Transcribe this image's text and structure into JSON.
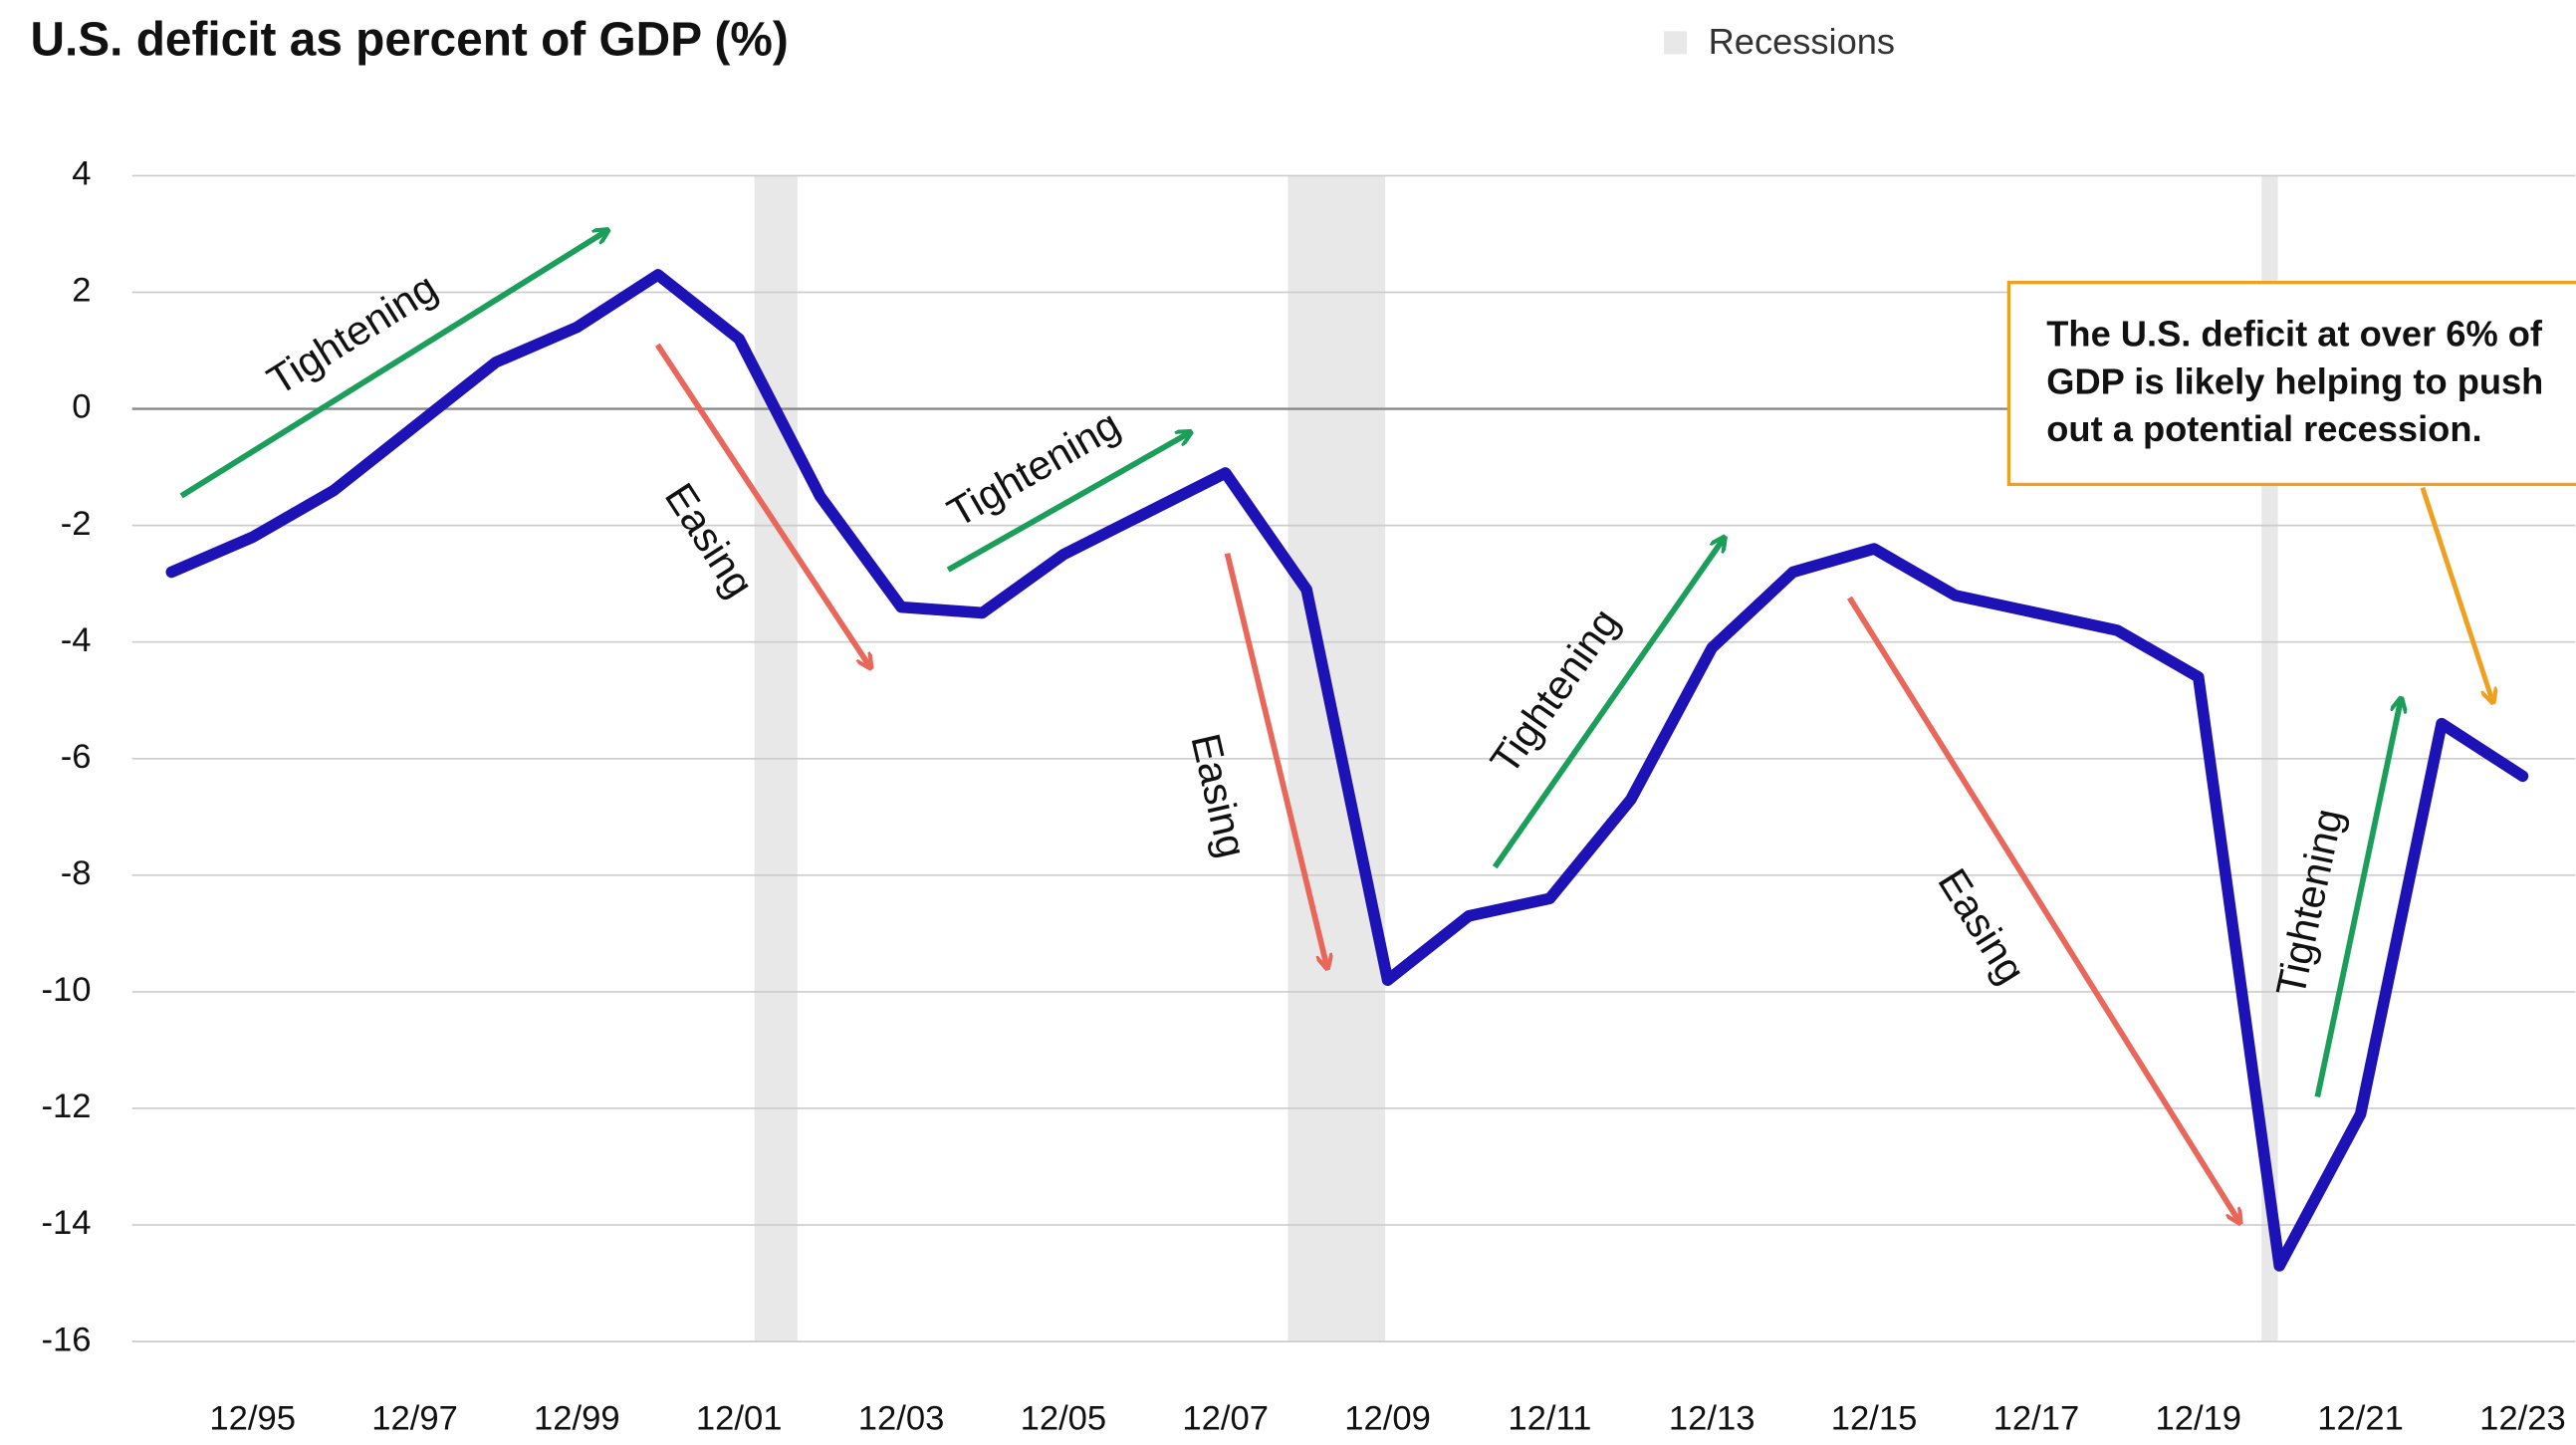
{
  "chart_data": {
    "type": "line",
    "title": "U.S. deficit as percent of GDP (%)",
    "legend_label": "Recessions",
    "categories": [
      null,
      "12/95",
      null,
      "12/97",
      null,
      "12/99",
      null,
      "12/01",
      null,
      "12/03",
      null,
      "12/05",
      null,
      "12/07",
      null,
      "12/09",
      null,
      "12/11",
      null,
      "12/13",
      null,
      "12/15",
      null,
      "12/17",
      null,
      "12/19",
      null,
      "12/21",
      null,
      "12/23"
    ],
    "values": [
      -2.8,
      -2.2,
      -1.4,
      -0.3,
      0.8,
      1.4,
      2.3,
      1.2,
      -1.5,
      -3.4,
      -3.5,
      -2.5,
      -1.8,
      -1.1,
      -3.1,
      -9.8,
      -8.7,
      -8.4,
      -6.7,
      -4.1,
      -2.8,
      -2.4,
      -3.2,
      -3.5,
      -3.8,
      -4.6,
      -14.7,
      -12.1,
      -5.4,
      -6.3
    ],
    "color": "#1c12b5",
    "recession_color": "#e8e8e8",
    "recessions": [
      {
        "start": 7.19,
        "end": 7.72
      },
      {
        "start": 13.77,
        "end": 14.97
      },
      {
        "start": 25.78,
        "end": 25.98
      }
    ],
    "ylim": [
      -16,
      4
    ],
    "yticks": [
      4,
      2,
      0,
      -2,
      -4,
      -6,
      -8,
      -10,
      -12,
      -14,
      -16
    ],
    "grid": true,
    "annotations": [
      "Tightening",
      "Easing",
      "Tightening",
      "Easing",
      "Tightening",
      "Easing",
      "Tightening"
    ],
    "callout": [
      "The U.S. deficit at over 6% of",
      "GDP is likely helping to push",
      "out a potential recession."
    ]
  }
}
